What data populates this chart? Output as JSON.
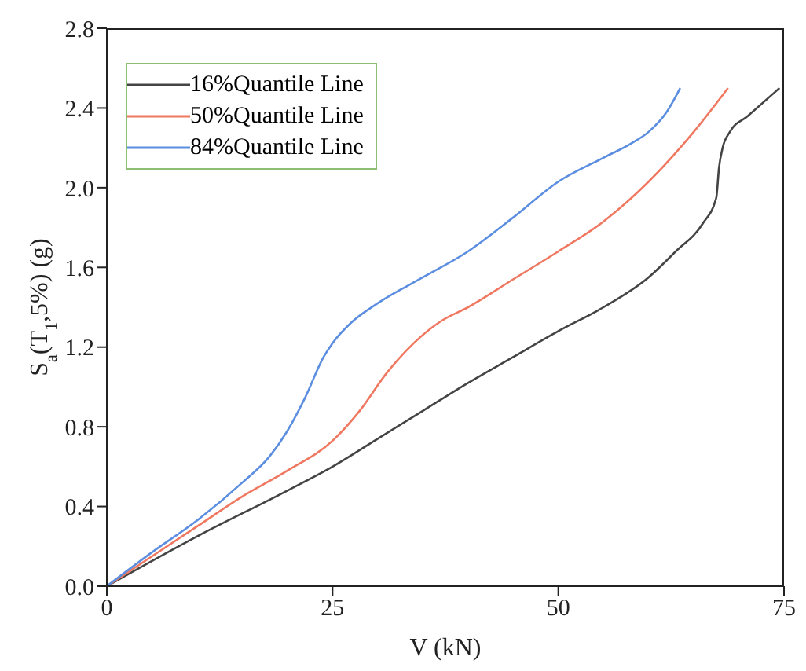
{
  "chart_data": {
    "type": "line",
    "xlabel": "V (kN)",
    "ylabel": "S$_{a}$(T$_{1}$,5%) (g)",
    "xlim": [
      0,
      75
    ],
    "xticks": [
      0,
      25,
      50,
      75
    ],
    "ylim": [
      0,
      2.8
    ],
    "yticks": [
      {
        "value": 0,
        "label": "0.0"
      },
      0.4,
      0.8,
      1.2,
      1.6,
      {
        "value": 2,
        "label": "2.0"
      },
      2.4,
      2.8
    ],
    "grid": false,
    "legend": "top left",
    "marker": "none",
    "line_style": "solid",
    "series": [
      {
        "name": "16%Quantile Line",
        "color": "#444444",
        "x": [
          0,
          10,
          20,
          25,
          30,
          35,
          40,
          45,
          50,
          55,
          60,
          63,
          66,
          67.5,
          67.8,
          68.2,
          69,
          71,
          74.5
        ],
        "values": [
          0,
          0.25,
          0.48,
          0.6,
          0.74,
          0.88,
          1.02,
          1.15,
          1.28,
          1.4,
          1.55,
          1.68,
          1.82,
          1.95,
          2.1,
          2.2,
          2.28,
          2.36,
          2.5
        ]
      },
      {
        "name": "50%Quantile Line",
        "color": "#f07860",
        "x": [
          0,
          5,
          10,
          15,
          20,
          25,
          28,
          31,
          34,
          37,
          40,
          45,
          50,
          55,
          60,
          65,
          68.8
        ],
        "values": [
          0,
          0.15,
          0.3,
          0.45,
          0.58,
          0.73,
          0.88,
          1.07,
          1.22,
          1.33,
          1.4,
          1.54,
          1.68,
          1.83,
          2.03,
          2.28,
          2.5
        ]
      },
      {
        "name": "84%Quantile Line",
        "color": "#5b8ee0",
        "x": [
          0,
          5,
          10,
          15,
          18,
          20,
          22,
          24,
          25,
          27,
          30,
          35,
          40,
          45,
          50,
          55,
          58,
          60,
          62,
          63.5
        ],
        "values": [
          0,
          0.17,
          0.33,
          0.52,
          0.65,
          0.78,
          0.95,
          1.15,
          1.22,
          1.32,
          1.42,
          1.55,
          1.68,
          1.85,
          2.03,
          2.15,
          2.22,
          2.28,
          2.38,
          2.5
        ]
      }
    ]
  }
}
